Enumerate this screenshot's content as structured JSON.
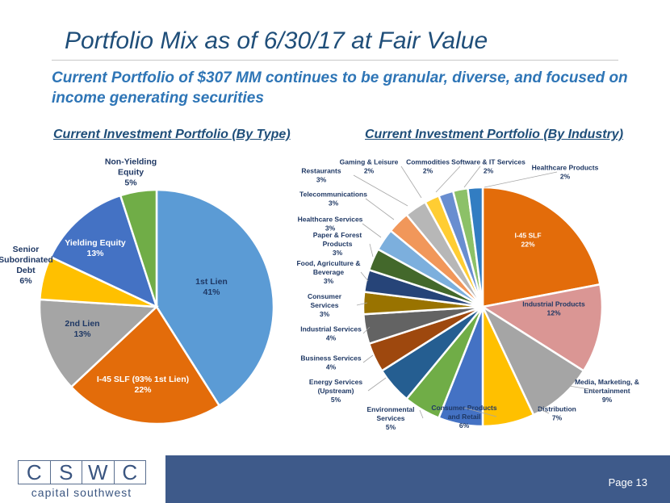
{
  "slide": {
    "title": "Portfolio Mix as of 6/30/17 at Fair Value",
    "subtitle": "Current Portfolio of $307 MM continues to be granular, diverse, and focused on income generating securities",
    "page": "Page 13"
  },
  "logo": {
    "letters": [
      "C",
      "S",
      "W",
      "C"
    ],
    "name": "capital southwest"
  },
  "chart_data": [
    {
      "type": "pie",
      "title": "Current Investment Portfolio (By Type)",
      "slices": [
        {
          "label": "1st Lien",
          "value": 41,
          "display": "41%",
          "color": "#5b9bd5"
        },
        {
          "label": "I-45 SLF (93% 1st Lien)",
          "value": 22,
          "display": "22%",
          "color": "#e36c0a"
        },
        {
          "label": "2nd Lien",
          "value": 13,
          "display": "13%",
          "color": "#a5a5a5"
        },
        {
          "label": "Senior Subordinated Debt",
          "value": 6,
          "display": "6%",
          "color": "#ffc000"
        },
        {
          "label": "Yielding Equity",
          "value": 13,
          "display": "13%",
          "color": "#4472c4"
        },
        {
          "label": "Non-Yielding Equity",
          "value": 5,
          "display": "5%",
          "color": "#70ad47"
        }
      ]
    },
    {
      "type": "pie",
      "title": "Current Investment Portfolio (By Industry)",
      "slices": [
        {
          "label": "I-45 SLF",
          "value": 22,
          "display": "22%",
          "color": "#e36c0a"
        },
        {
          "label": "Industrial Products",
          "value": 12,
          "display": "12%",
          "color": "#da9694"
        },
        {
          "label": "Media, Marketing, & Entertainment",
          "value": 9,
          "display": "9%",
          "color": "#a5a5a5"
        },
        {
          "label": "Distribution",
          "value": 7,
          "display": "7%",
          "color": "#ffc000"
        },
        {
          "label": "Consumer Products and Retail",
          "value": 6,
          "display": "6%",
          "color": "#4472c4"
        },
        {
          "label": "Environmental Services",
          "value": 5,
          "display": "5%",
          "color": "#70ad47"
        },
        {
          "label": "Energy Services (Upstream)",
          "value": 5,
          "display": "5%",
          "color": "#255e91"
        },
        {
          "label": "Business Services",
          "value": 4,
          "display": "4%",
          "color": "#9e480e"
        },
        {
          "label": "Industrial Services",
          "value": 4,
          "display": "4%",
          "color": "#636363"
        },
        {
          "label": "Consumer Services",
          "value": 3,
          "display": "3%",
          "color": "#997300"
        },
        {
          "label": "Food, Agriculture & Beverage",
          "value": 3,
          "display": "3%",
          "color": "#264478"
        },
        {
          "label": "Paper & Forest Products",
          "value": 3,
          "display": "3%",
          "color": "#43682b"
        },
        {
          "label": "Healthcare Services",
          "value": 3,
          "display": "3%",
          "color": "#7cafdd"
        },
        {
          "label": "Telecommunications",
          "value": 3,
          "display": "3%",
          "color": "#f1975a"
        },
        {
          "label": "Restaurants",
          "value": 3,
          "display": "3%",
          "color": "#b7b7b7"
        },
        {
          "label": "Gaming & Leisure",
          "value": 2,
          "display": "2%",
          "color": "#ffcd33"
        },
        {
          "label": "Commodities",
          "value": 2,
          "display": "2%",
          "color": "#698ed0"
        },
        {
          "label": "Software & IT Services",
          "value": 2,
          "display": "2%",
          "color": "#8cc168"
        },
        {
          "label": "Healthcare Products",
          "value": 2,
          "display": "2%",
          "color": "#327dc2"
        }
      ]
    }
  ]
}
